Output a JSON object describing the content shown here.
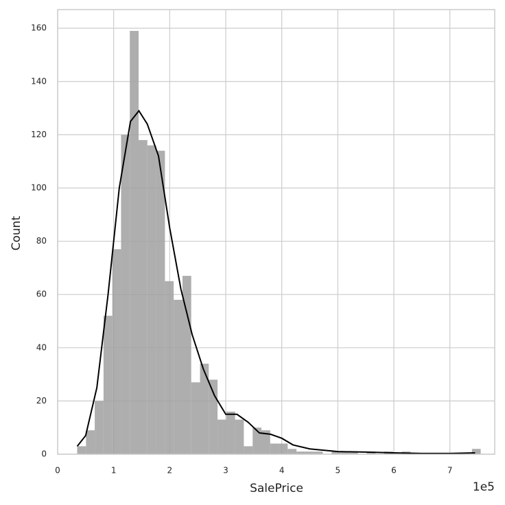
{
  "chart_data": {
    "type": "histogram",
    "xlabel": "SalePrice",
    "ylabel": "Count",
    "x_offset_label": "1e5",
    "bins": [
      0.349,
      0.506,
      0.662,
      0.819,
      0.975,
      1.132,
      1.288,
      1.445,
      1.601,
      1.758,
      1.915,
      2.071,
      2.228,
      2.384,
      2.541,
      2.697,
      2.854,
      3.01,
      3.167,
      3.323,
      3.48,
      3.637,
      3.793,
      3.95,
      4.106,
      4.263,
      4.419,
      4.576,
      4.732,
      4.889,
      5.046,
      5.202,
      5.359,
      5.515,
      5.672,
      5.828,
      5.985,
      6.141,
      6.298,
      6.454,
      6.611,
      6.768,
      6.924,
      7.081,
      7.237,
      7.394,
      7.55
    ],
    "values": [
      3,
      9,
      20,
      52,
      77,
      120,
      159,
      118,
      116,
      114,
      65,
      58,
      67,
      27,
      34,
      28,
      13,
      16,
      13,
      3,
      10,
      9,
      4,
      4,
      2,
      1,
      1,
      1,
      0,
      1,
      1,
      1,
      0,
      1,
      0,
      1,
      0,
      1,
      0,
      0,
      0,
      0,
      0,
      0,
      0,
      2
    ],
    "color": "#a0a0a0",
    "kde": {
      "color": "#000000",
      "x": [
        0.35,
        0.5,
        0.7,
        0.9,
        1.1,
        1.3,
        1.45,
        1.6,
        1.8,
        2.0,
        2.2,
        2.4,
        2.6,
        2.8,
        3.0,
        3.2,
        3.4,
        3.6,
        3.8,
        4.0,
        4.2,
        4.5,
        5.0,
        5.5,
        6.0,
        6.5,
        7.0,
        7.45
      ],
      "y": [
        3,
        7,
        25,
        60,
        100,
        125,
        129,
        124,
        112,
        85,
        62,
        45,
        32,
        22,
        15,
        15,
        12,
        8,
        7.5,
        6,
        3.5,
        2,
        1,
        0.8,
        0.5,
        0.3,
        0.3,
        0.5
      ]
    },
    "xlim": [
      0,
      7.8
    ],
    "xticks": [
      0,
      1,
      2,
      3,
      4,
      5,
      6,
      7
    ],
    "ylim": [
      0,
      167
    ],
    "yticks": [
      0,
      20,
      40,
      60,
      80,
      100,
      120,
      140,
      160
    ],
    "grid": true
  }
}
